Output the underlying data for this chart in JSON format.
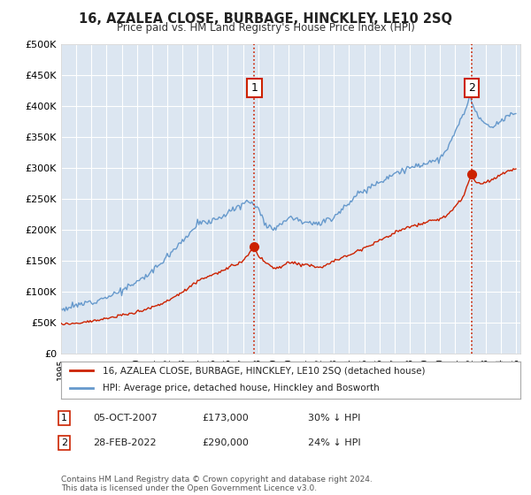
{
  "title": "16, AZALEA CLOSE, BURBAGE, HINCKLEY, LE10 2SQ",
  "subtitle": "Price paid vs. HM Land Registry's House Price Index (HPI)",
  "legend_label_red": "16, AZALEA CLOSE, BURBAGE, HINCKLEY, LE10 2SQ (detached house)",
  "legend_label_blue": "HPI: Average price, detached house, Hinckley and Bosworth",
  "annotation1_date": "05-OCT-2007",
  "annotation1_price": "£173,000",
  "annotation1_hpi": "30% ↓ HPI",
  "annotation2_date": "28-FEB-2022",
  "annotation2_price": "£290,000",
  "annotation2_hpi": "24% ↓ HPI",
  "footer": "Contains HM Land Registry data © Crown copyright and database right 2024.\nThis data is licensed under the Open Government Licence v3.0.",
  "ylim": [
    0,
    500000
  ],
  "yticks": [
    0,
    50000,
    100000,
    150000,
    200000,
    250000,
    300000,
    350000,
    400000,
    450000,
    500000
  ],
  "sale1_year": 2007.75,
  "sale2_year": 2022.08,
  "sale1_price": 173000,
  "sale2_price": 290000,
  "fig_bg_color": "#ffffff",
  "plot_bg_color": "#dce6f1",
  "red_color": "#cc2200",
  "blue_color": "#6699cc",
  "grid_color": "#ffffff"
}
